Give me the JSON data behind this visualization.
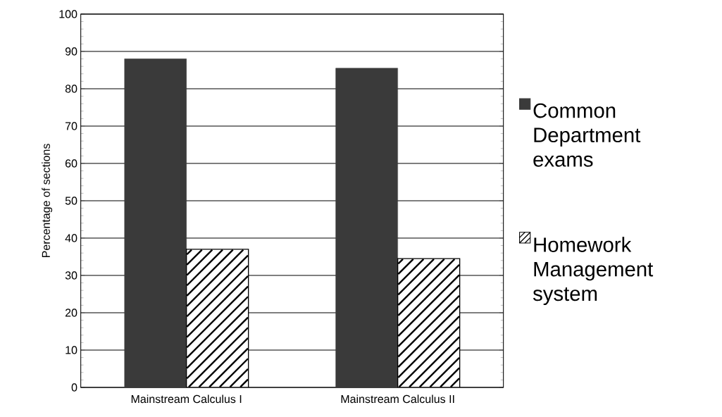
{
  "chart_data": {
    "type": "bar",
    "ylabel": "Percentage of sections",
    "categories": [
      "Mainstream Calculus I",
      "Mainstream Calculus II"
    ],
    "series": [
      {
        "name": "Common Department exams",
        "color": "#3a3a3a",
        "values": [
          88,
          85.5
        ]
      },
      {
        "name": "Homework Management system",
        "color": "#ffffff",
        "values": [
          37,
          34.5
        ]
      }
    ],
    "ylim": [
      0,
      100
    ],
    "yticks": [
      0,
      10,
      20,
      30,
      40,
      50,
      60,
      70,
      80,
      90,
      100
    ],
    "grid": "y",
    "legend": "right"
  }
}
